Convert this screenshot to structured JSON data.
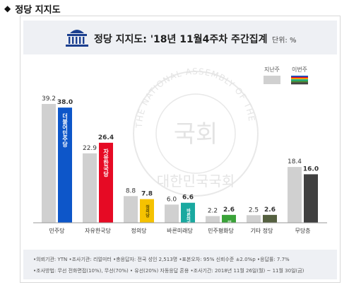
{
  "section": {
    "title": "정당 지지도",
    "marker": "◆"
  },
  "chart_data": {
    "type": "bar",
    "title": "정당 지지도: '18년 11월4주차 주간집계",
    "unit": "단위: %",
    "legend": [
      "지난주",
      "이번주"
    ],
    "legend_placement": "top-right",
    "categories": [
      "민주당",
      "자유한국당",
      "정의당",
      "바른미래당",
      "민주평화당",
      "기타 정당",
      "무당층"
    ],
    "series": [
      {
        "name": "지난주",
        "values": [
          39.2,
          22.9,
          8.8,
          6.0,
          2.2,
          2.5,
          18.4
        ]
      },
      {
        "name": "이번주",
        "values": [
          38.0,
          26.4,
          7.8,
          6.6,
          2.6,
          2.6,
          16.0
        ]
      }
    ],
    "this_week_colors": [
      "#0d56c9",
      "#e60a24",
      "#f5c200",
      "#1aa9a0",
      "#3aa339",
      "#556040",
      "#404040"
    ],
    "last_week_color": "#d0d0d0",
    "ylim": [
      0,
      42
    ],
    "grid": false,
    "bar_labels": [
      "더불어민주당",
      "자유한국당",
      "정의당",
      "바른미래당",
      "민주평화당",
      "",
      ""
    ]
  },
  "footnotes": [
    "•의뢰기관: YTN  •조사기관: 리얼미터  •총응답자: 전국 성인 2,513명  •표본오차: 95% 신뢰수준 ±2.0%p  •응답률: 7.7%",
    "•조사방법: 무선 전화면접(10%), 무선(70%) • 유선(20%) 자동응답 혼용  •조사기간: 2018년 11월 26일(월) ~ 11월 30일(금)"
  ],
  "watermark": {
    "ring_text": "THE NATIONAL ASSEMBLY OF THE REPUBLIC OF KOREA",
    "center_text": "국회",
    "bottom_text": "대한민국국회"
  }
}
